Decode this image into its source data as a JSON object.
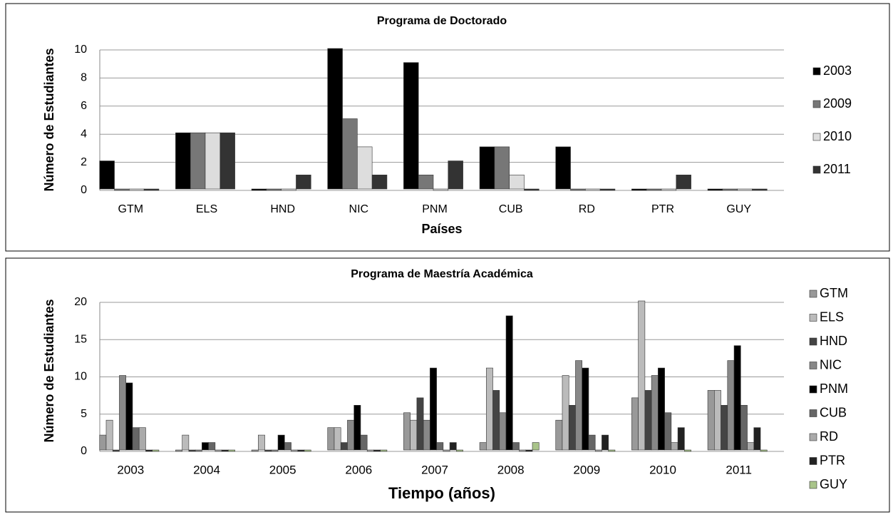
{
  "chart_data": [
    {
      "type": "bar",
      "title": "Programa de Doctorado",
      "x_label": "Países",
      "y_label": "Número de Estudiantes",
      "categories": [
        "GTM",
        "ELS",
        "HND",
        "NIC",
        "PNM",
        "CUB",
        "RD",
        "PTR",
        "GUY"
      ],
      "series": [
        {
          "name": "2003",
          "color": "#000000",
          "values": [
            2,
            4,
            0,
            10,
            9,
            3,
            3,
            0,
            0
          ]
        },
        {
          "name": "2009",
          "color": "#777777",
          "values": [
            0,
            4,
            0,
            5,
            1,
            3,
            0,
            0,
            0
          ]
        },
        {
          "name": "2010",
          "color": "#dddddd",
          "values": [
            0,
            4,
            0,
            3,
            0,
            1,
            0,
            0,
            0
          ]
        },
        {
          "name": "2011",
          "color": "#333333",
          "values": [
            0,
            4,
            1,
            1,
            2,
            0,
            0,
            1,
            0
          ]
        }
      ],
      "ylim": [
        0,
        10
      ],
      "yticks": [
        0,
        2,
        4,
        6,
        8,
        10
      ],
      "grid": true,
      "legend": "right"
    },
    {
      "type": "bar",
      "title": "Programa de Maestría Académica",
      "x_label": "Tiempo (años)",
      "y_label": "Número de Estudiantes",
      "categories": [
        "2003",
        "2004",
        "2005",
        "2006",
        "2007",
        "2008",
        "2009",
        "2010",
        "2011"
      ],
      "series": [
        {
          "name": "GTM",
          "color": "#999999",
          "values": [
            2,
            0,
            0,
            3,
            5,
            1,
            4,
            7,
            8
          ]
        },
        {
          "name": "ELS",
          "color": "#bbbbbb",
          "values": [
            4,
            2,
            2,
            3,
            4,
            11,
            10,
            20,
            8
          ]
        },
        {
          "name": "HND",
          "color": "#444444",
          "values": [
            0,
            0,
            0,
            1,
            7,
            8,
            6,
            8,
            6
          ]
        },
        {
          "name": "NIC",
          "color": "#888888",
          "values": [
            10,
            0,
            0,
            4,
            4,
            5,
            12,
            10,
            12
          ]
        },
        {
          "name": "PNM",
          "color": "#000000",
          "values": [
            9,
            1,
            2,
            6,
            11,
            18,
            11,
            11,
            14
          ]
        },
        {
          "name": "CUB",
          "color": "#666666",
          "values": [
            3,
            1,
            1,
            2,
            1,
            1,
            2,
            5,
            6
          ]
        },
        {
          "name": "RD",
          "color": "#aaaaaa",
          "values": [
            3,
            0,
            0,
            0,
            0,
            0,
            0,
            1,
            1
          ]
        },
        {
          "name": "PTR",
          "color": "#222222",
          "values": [
            0,
            0,
            0,
            0,
            1,
            0,
            2,
            3,
            3
          ]
        },
        {
          "name": "GUY",
          "color": "#a9c48a",
          "values": [
            0,
            0,
            0,
            0,
            0,
            1,
            0,
            0,
            0
          ]
        }
      ],
      "ylim": [
        0,
        20
      ],
      "yticks": [
        0,
        5,
        10,
        15,
        20
      ],
      "grid": true,
      "legend": "right"
    }
  ]
}
